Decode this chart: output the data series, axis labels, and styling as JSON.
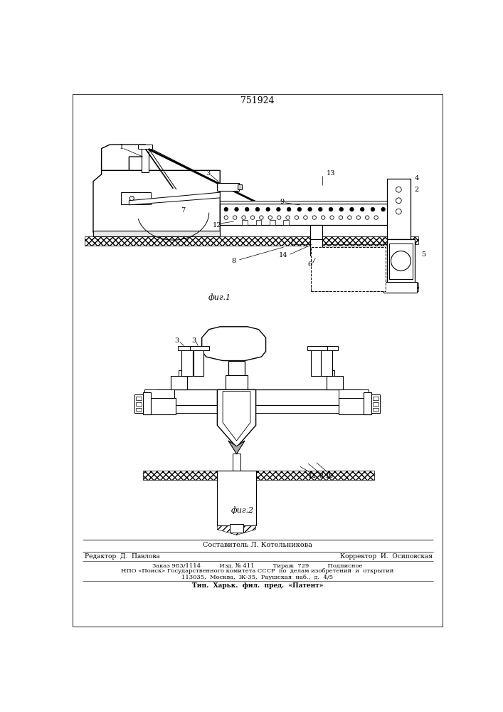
{
  "patent_number": "751924",
  "background_color": "#ffffff",
  "line_color": "#000000",
  "fig_width": 7.07,
  "fig_height": 10.0,
  "dpi": 100,
  "fig1_caption": "фиг.1",
  "fig2_caption": "фиг.2",
  "footer_составитель": "Составитель Л. Котельникова",
  "footer_redaktor_left": "Редактор  Д.  Павлова",
  "footer_korrektor_right": "Корректор  И.  Осиповская",
  "footer_zakaz": "Заказ 983/1114          Изд. № 411          Тираж  729          Подписное",
  "footer_npo": "НПО «Поиск» Государственного комитета СССР  по  делам изобретений  и  открытий",
  "footer_addr": "113035,  Москва,  Ж-35,  Раушская  наб.,  д.  4/5",
  "footer_tip": "Тип.  Харьк.  фил.  пред.  «Патент»"
}
